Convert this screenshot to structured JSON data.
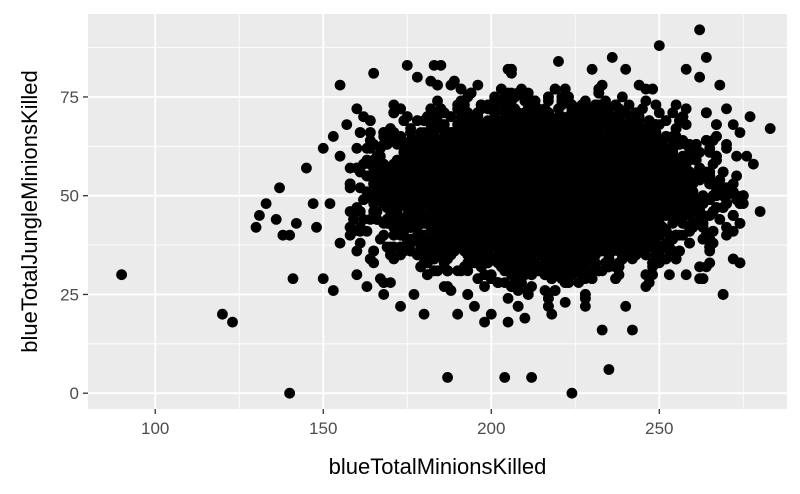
{
  "chart_data": {
    "type": "scatter",
    "title": "",
    "xlabel": "blueTotalMinionsKilled",
    "ylabel": "blueTotalJungleMinionsKilled",
    "xlim": [
      80,
      288
    ],
    "ylim": [
      -4,
      96
    ],
    "x_ticks": [
      100,
      150,
      200,
      250
    ],
    "y_ticks": [
      0,
      25,
      50,
      75
    ],
    "x_tick_labels": [
      "100",
      "150",
      "200",
      "250"
    ],
    "y_tick_labels": [
      "0",
      "25",
      "50",
      "75"
    ],
    "grid": true,
    "legend": "none",
    "point_color": "#000000",
    "panel_background": "#ebebeb",
    "grid_color": "#ffffff",
    "dense_core": {
      "x_center": 215,
      "x_sd": 21,
      "y_center": 52,
      "y_sd": 9,
      "approx_count": 9800
    },
    "points": [
      [
        90,
        30
      ],
      [
        120,
        20
      ],
      [
        123,
        18
      ],
      [
        140,
        0
      ],
      [
        141,
        29
      ],
      [
        130,
        42
      ],
      [
        131,
        45
      ],
      [
        133,
        48
      ],
      [
        136,
        44
      ],
      [
        137,
        52
      ],
      [
        138,
        40
      ],
      [
        140,
        40
      ],
      [
        142,
        43
      ],
      [
        145,
        57
      ],
      [
        147,
        48
      ],
      [
        148,
        42
      ],
      [
        150,
        62
      ],
      [
        152,
        48
      ],
      [
        153,
        65
      ],
      [
        155,
        78
      ],
      [
        155,
        60
      ],
      [
        157,
        68
      ],
      [
        160,
        72
      ],
      [
        162,
        70
      ],
      [
        150,
        29
      ],
      [
        153,
        26
      ],
      [
        160,
        30
      ],
      [
        163,
        27
      ],
      [
        168,
        25
      ],
      [
        170,
        28
      ],
      [
        173,
        22
      ],
      [
        177,
        25
      ],
      [
        180,
        20
      ],
      [
        187,
        4
      ],
      [
        183,
        83
      ],
      [
        175,
        83
      ],
      [
        178,
        80
      ],
      [
        185,
        83
      ],
      [
        188,
        78
      ],
      [
        192,
        72
      ],
      [
        190,
        20
      ],
      [
        195,
        22
      ],
      [
        198,
        18
      ],
      [
        200,
        20
      ],
      [
        205,
        18
      ],
      [
        210,
        19
      ],
      [
        212,
        4
      ],
      [
        204,
        4
      ],
      [
        224,
        0
      ],
      [
        218,
        20
      ],
      [
        222,
        23
      ],
      [
        228,
        22
      ],
      [
        233,
        16
      ],
      [
        235,
        6
      ],
      [
        242,
        16
      ],
      [
        240,
        22
      ],
      [
        247,
        28
      ],
      [
        250,
        88
      ],
      [
        262,
        92
      ],
      [
        264,
        85
      ],
      [
        258,
        82
      ],
      [
        244,
        78
      ],
      [
        236,
        85
      ],
      [
        230,
        82
      ],
      [
        220,
        84
      ],
      [
        205,
        82
      ],
      [
        196,
        78
      ],
      [
        262,
        80
      ],
      [
        268,
        78
      ],
      [
        270,
        72
      ],
      [
        272,
        68
      ],
      [
        274,
        66
      ],
      [
        276,
        60
      ],
      [
        278,
        58
      ],
      [
        283,
        67
      ],
      [
        277,
        70
      ],
      [
        280,
        46
      ],
      [
        275,
        48
      ],
      [
        272,
        53
      ],
      [
        270,
        40
      ],
      [
        268,
        44
      ],
      [
        266,
        38
      ],
      [
        262,
        32
      ],
      [
        258,
        30
      ],
      [
        255,
        34
      ],
      [
        248,
        30
      ],
      [
        250,
        36
      ],
      [
        265,
        56
      ],
      [
        270,
        62
      ],
      [
        160,
        36
      ],
      [
        165,
        33
      ],
      [
        170,
        35
      ],
      [
        158,
        40
      ],
      [
        155,
        38
      ],
      [
        162,
        44
      ],
      [
        167,
        60
      ],
      [
        170,
        66
      ],
      [
        164,
        55
      ],
      [
        158,
        52
      ]
    ]
  }
}
